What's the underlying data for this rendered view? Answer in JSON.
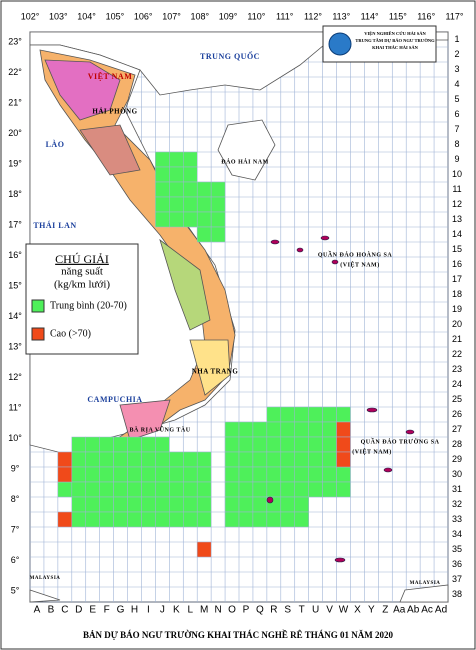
{
  "map": {
    "longitudes": [
      "102°",
      "103°",
      "104°",
      "105°",
      "106°",
      "107°",
      "108°",
      "109°",
      "110°",
      "111°",
      "112°",
      "113°",
      "114°",
      "115°",
      "116°",
      "117°"
    ],
    "latitudes": [
      "23°",
      "22°",
      "21°",
      "20°",
      "19°",
      "18°",
      "17°",
      "16°",
      "15°",
      "14°",
      "13°",
      "12°",
      "11°",
      "10°",
      "9°",
      "8°",
      "7°",
      "6°",
      "5°"
    ],
    "columns": [
      "A",
      "B",
      "C",
      "D",
      "E",
      "F",
      "G",
      "H",
      "I",
      "J",
      "K",
      "L",
      "M",
      "N",
      "O",
      "P",
      "Q",
      "R",
      "S",
      "T",
      "U",
      "V",
      "W",
      "X",
      "Y",
      "Z",
      "Aa",
      "Ab",
      "Ac",
      "Ad"
    ],
    "rows": [
      1,
      2,
      3,
      4,
      5,
      6,
      7,
      8,
      9,
      10,
      11,
      12,
      13,
      14,
      15,
      16,
      17,
      18,
      19,
      20,
      21,
      22,
      23,
      24,
      25,
      26,
      27,
      28,
      29,
      30,
      31,
      32,
      33,
      34,
      35,
      36,
      37,
      38
    ],
    "labels": [
      "TRUNG QUỐC",
      "VIỆT NAM",
      "HẢI PHÒNG",
      "LÀO",
      "ĐẢO HẢI NAM",
      "THÁI LAN",
      "QUẦN ĐẢO HOÀNG SA",
      "(VIỆT NAM)",
      "CAMPUCHIA",
      "NHA TRANG",
      "BÀ RỊA VŨNG TÀU",
      "QUẦN ĐẢO TRƯỜNG SA",
      "(VIỆT NAM)",
      "MALAYSIA",
      "MALAYSIA"
    ],
    "logo": [
      "VIỆN NGHIÊN CỨU HẢI SẢN",
      "TRUNG TÂM DỰ BÁO NGƯ TRƯỜNG",
      "KHAI THÁC HẢI SẢN"
    ],
    "legend": {
      "title": "CHÚ GIẢI",
      "subtitle": "năng suất",
      "unit": "(kg/km lưới)",
      "items": [
        "Trung bình (20-70)",
        "Cao (>70)"
      ]
    },
    "title": "BẢN DỰ BÁO NGƯ TRƯỜNG KHAI THÁC NGHỀ RÊ THÁNG 01 NĂM 2020"
  }
}
